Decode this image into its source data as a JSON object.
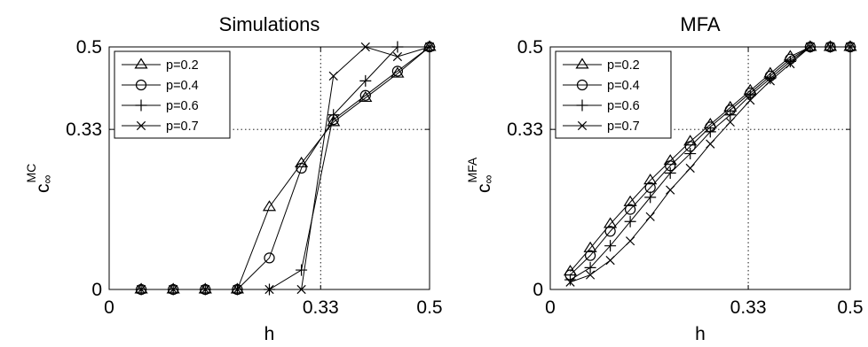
{
  "chart_data": [
    {
      "type": "line",
      "title": "Simulations",
      "xlabel": "h",
      "ylabel": "c",
      "ylabel_sub": "∞",
      "ylabel_sup": "MC",
      "xlim": [
        0,
        0.5
      ],
      "ylim": [
        0,
        0.5
      ],
      "xticks": [
        0,
        0.33,
        0.5
      ],
      "xtick_labels": [
        "0",
        "0.33",
        "0.5"
      ],
      "yticks": [
        0,
        0.33,
        0.5
      ],
      "ytick_labels": [
        "0",
        "0.33",
        "0.5"
      ],
      "guides": {
        "x": 0.33,
        "y": 0.33,
        "style": "dotted"
      },
      "grid": false,
      "legend_position": "top-left",
      "series": [
        {
          "name": "p=0.2",
          "marker": "triangle",
          "x": [
            0.05,
            0.1,
            0.15,
            0.2,
            0.25,
            0.3,
            0.35,
            0.4,
            0.45,
            0.5
          ],
          "y": [
            0,
            0,
            0,
            0,
            0.17,
            0.26,
            0.345,
            0.395,
            0.445,
            0.5
          ]
        },
        {
          "name": "p=0.4",
          "marker": "circle",
          "x": [
            0.05,
            0.1,
            0.15,
            0.2,
            0.25,
            0.3,
            0.35,
            0.4,
            0.45,
            0.5
          ],
          "y": [
            0,
            0,
            0,
            0,
            0.065,
            0.25,
            0.35,
            0.4,
            0.45,
            0.5
          ]
        },
        {
          "name": "p=0.6",
          "marker": "plus",
          "x": [
            0.05,
            0.1,
            0.15,
            0.2,
            0.25,
            0.3,
            0.35,
            0.4,
            0.45,
            0.5
          ],
          "y": [
            0,
            0,
            0,
            0,
            0,
            0.04,
            0.36,
            0.43,
            0.5,
            0.5
          ]
        },
        {
          "name": "p=0.7",
          "marker": "x",
          "x": [
            0.05,
            0.1,
            0.15,
            0.2,
            0.25,
            0.3,
            0.35,
            0.4,
            0.45,
            0.5
          ],
          "y": [
            0,
            0,
            0,
            0,
            0,
            0,
            0.44,
            0.5,
            0.48,
            0.5
          ]
        }
      ]
    },
    {
      "type": "line",
      "title": "MFA",
      "xlabel": "h",
      "ylabel": "c",
      "ylabel_sub": "∞",
      "ylabel_sup": "MFA",
      "xlim": [
        0,
        0.5
      ],
      "ylim": [
        0,
        0.5
      ],
      "xticks": [
        0,
        0.33,
        0.5
      ],
      "xtick_labels": [
        "0",
        "0.33",
        "0.5"
      ],
      "yticks": [
        0,
        0.33,
        0.5
      ],
      "ytick_labels": [
        "0",
        "0.33",
        "0.5"
      ],
      "guides": {
        "x": 0.33,
        "y": 0.33,
        "style": "dotted"
      },
      "grid": false,
      "legend_position": "top-left",
      "series": [
        {
          "name": "p=0.2",
          "marker": "triangle",
          "x": [
            0.0333,
            0.0667,
            0.1,
            0.1333,
            0.1667,
            0.2,
            0.2333,
            0.2667,
            0.3,
            0.3333,
            0.3667,
            0.4,
            0.4333,
            0.4667,
            0.5
          ],
          "y": [
            0.037,
            0.085,
            0.135,
            0.18,
            0.225,
            0.265,
            0.305,
            0.34,
            0.375,
            0.41,
            0.445,
            0.48,
            0.5,
            0.5,
            0.5
          ]
        },
        {
          "name": "p=0.4",
          "marker": "circle",
          "x": [
            0.0333,
            0.0667,
            0.1,
            0.1333,
            0.1667,
            0.2,
            0.2333,
            0.2667,
            0.3,
            0.3333,
            0.3667,
            0.4,
            0.4333,
            0.4667,
            0.5
          ],
          "y": [
            0.03,
            0.07,
            0.12,
            0.165,
            0.21,
            0.255,
            0.295,
            0.335,
            0.37,
            0.405,
            0.44,
            0.475,
            0.5,
            0.5,
            0.5
          ]
        },
        {
          "name": "p=0.6",
          "marker": "plus",
          "x": [
            0.0333,
            0.0667,
            0.1,
            0.1333,
            0.1667,
            0.2,
            0.2333,
            0.2667,
            0.3,
            0.3333,
            0.3667,
            0.4,
            0.4333,
            0.4667,
            0.5
          ],
          "y": [
            0.02,
            0.045,
            0.09,
            0.14,
            0.19,
            0.24,
            0.28,
            0.325,
            0.36,
            0.4,
            0.435,
            0.47,
            0.5,
            0.5,
            0.5
          ]
        },
        {
          "name": "p=0.7",
          "marker": "x",
          "x": [
            0.0333,
            0.0667,
            0.1,
            0.1333,
            0.1667,
            0.2,
            0.2333,
            0.2667,
            0.3,
            0.3333,
            0.3667,
            0.4,
            0.4333,
            0.4667,
            0.5
          ],
          "y": [
            0.015,
            0.03,
            0.06,
            0.1,
            0.15,
            0.205,
            0.25,
            0.3,
            0.345,
            0.39,
            0.43,
            0.465,
            0.5,
            0.5,
            0.5
          ]
        }
      ]
    }
  ]
}
